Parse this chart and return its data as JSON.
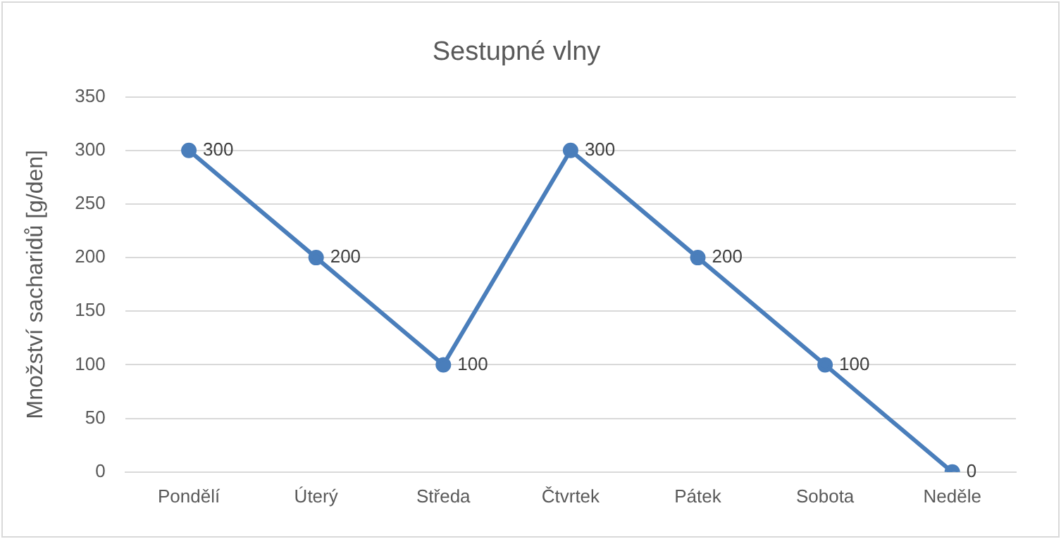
{
  "chart_data": {
    "type": "line",
    "title": "Sestupné vlny",
    "ylabel": "Množství sacharidů [g/den]",
    "categories": [
      "Pondělí",
      "Úterý",
      "Středa",
      "Čtvrtek",
      "Pátek",
      "Sobota",
      "Neděle"
    ],
    "series": [
      {
        "color": "#4a7ebb",
        "values": [
          300,
          200,
          100,
          300,
          200,
          100,
          0
        ]
      }
    ],
    "ylim": [
      0,
      350
    ],
    "yticks": [
      0,
      50,
      100,
      150,
      200,
      250,
      300,
      350
    ],
    "grid": "y",
    "legend": false,
    "marker": "circle",
    "line_style": "solid",
    "data_labels": true
  }
}
